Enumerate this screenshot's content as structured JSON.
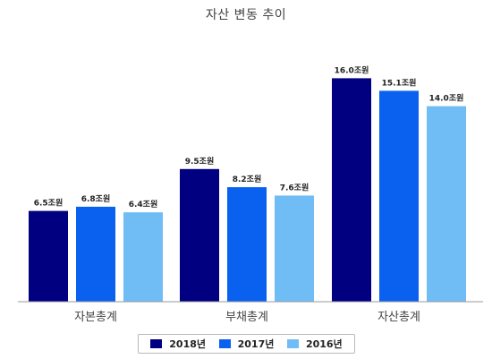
{
  "chart_data": {
    "type": "bar",
    "title": "자산 변동 추이",
    "xlabel": "",
    "ylabel": "",
    "categories": [
      "자본총계",
      "부채총계",
      "자산총계"
    ],
    "series": [
      {
        "name": "2018년",
        "color": "#000080",
        "values": [
          6.5,
          9.5,
          16.0
        ],
        "labels": [
          "6.5조원",
          "9.5조원",
          "16.0조원"
        ]
      },
      {
        "name": "2017년",
        "color": "#0a61f0",
        "values": [
          6.8,
          8.2,
          15.1
        ],
        "labels": [
          "6.8조원",
          "8.2조원",
          "15.1조원"
        ]
      },
      {
        "name": "2016년",
        "color": "#70bdf5",
        "values": [
          6.4,
          7.6,
          14.0
        ],
        "labels": [
          "6.4조원",
          "7.6조원",
          "14.0조원"
        ]
      }
    ],
    "ylim": [
      0,
      18.5
    ],
    "grid": false,
    "legend_position": "bottom"
  }
}
